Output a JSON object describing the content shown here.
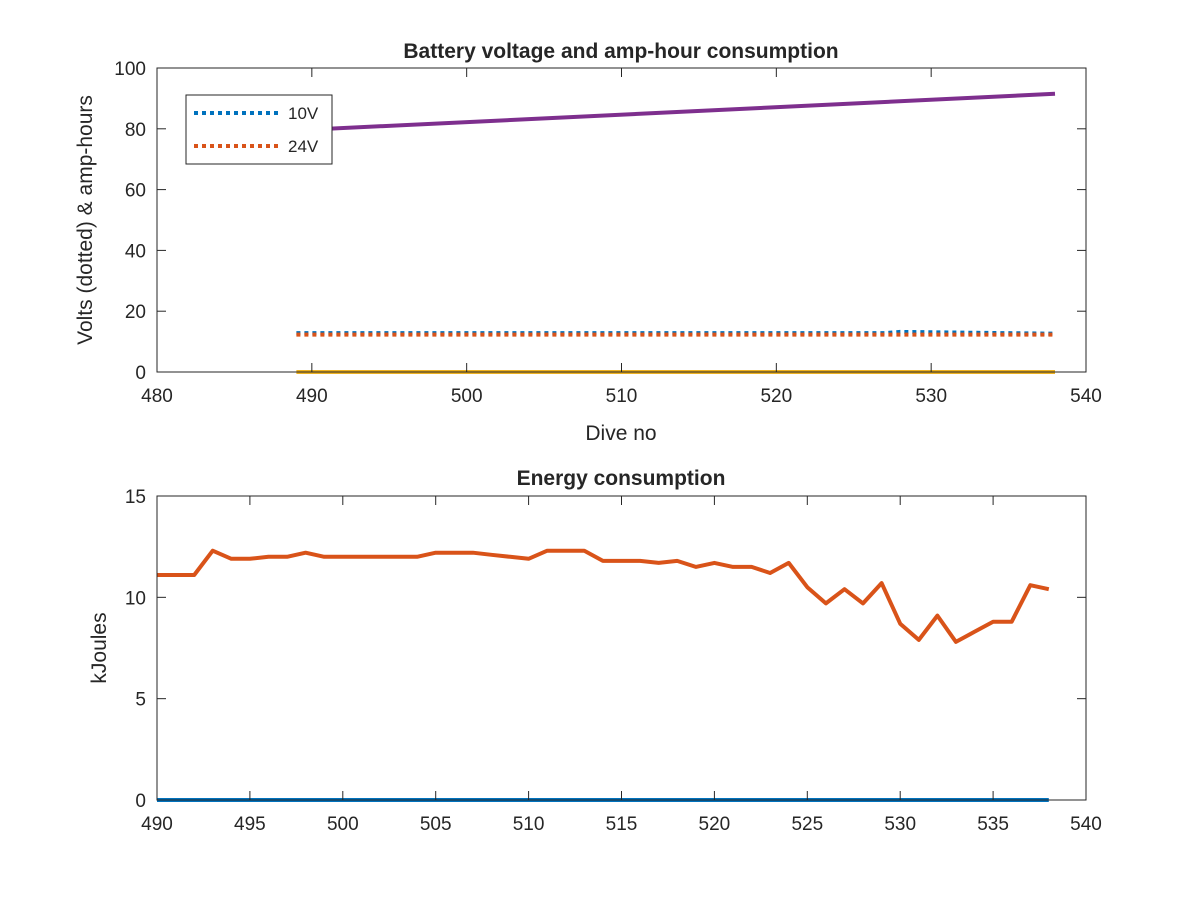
{
  "chart_data": [
    {
      "type": "line",
      "title": "Battery voltage and amp-hour consumption",
      "xlabel": "Dive no",
      "ylabel": "Volts (dotted) & amp-hours",
      "xlim": [
        480,
        540
      ],
      "ylim": [
        0,
        100
      ],
      "xticks": [
        "480",
        "490",
        "500",
        "510",
        "520",
        "530",
        "540"
      ],
      "yticks": [
        "0",
        "20",
        "40",
        "60",
        "80",
        "100"
      ],
      "grid": false,
      "legend_position": "top-left",
      "legend": [
        "10V",
        "24V"
      ],
      "series": [
        {
          "name": "10V",
          "style": "dotted",
          "color": "#0072BD",
          "x": [
            489,
            527,
            528,
            538
          ],
          "y": [
            12.8,
            12.8,
            13.2,
            12.6
          ]
        },
        {
          "name": "24V",
          "style": "dotted",
          "color": "#D95319",
          "x": [
            489,
            538
          ],
          "y": [
            12.3,
            12.3
          ]
        },
        {
          "style": "solid",
          "color": "#7E2F8E",
          "x": [
            489,
            538
          ],
          "y": [
            79.5,
            91.5
          ]
        },
        {
          "style": "solid",
          "color": "#EDB120",
          "x": [
            489,
            538
          ],
          "y": [
            0,
            0
          ]
        }
      ]
    },
    {
      "type": "line",
      "title": "Energy consumption",
      "xlabel": "",
      "ylabel": "kJoules",
      "xlim": [
        490,
        540
      ],
      "ylim": [
        0,
        15
      ],
      "xticks": [
        "490",
        "495",
        "500",
        "505",
        "510",
        "515",
        "520",
        "525",
        "530",
        "535",
        "540"
      ],
      "yticks": [
        "0",
        "5",
        "10",
        "15"
      ],
      "grid": false,
      "series": [
        {
          "style": "solid",
          "color": "#D95319",
          "x": [
            490,
            491,
            492,
            493,
            494,
            495,
            496,
            497,
            498,
            499,
            500,
            501,
            502,
            503,
            504,
            505,
            506,
            507,
            508,
            509,
            510,
            511,
            512,
            513,
            514,
            515,
            516,
            517,
            518,
            519,
            520,
            521,
            522,
            523,
            524,
            525,
            526,
            527,
            528,
            529,
            530,
            531,
            532,
            533,
            534,
            535,
            536,
            537,
            538
          ],
          "y": [
            11.1,
            11.1,
            11.1,
            12.3,
            11.9,
            11.9,
            12.0,
            12.0,
            12.2,
            12.0,
            12.0,
            12.0,
            12.0,
            12.0,
            12.0,
            12.2,
            12.2,
            12.2,
            12.1,
            12.0,
            11.9,
            12.3,
            12.3,
            12.3,
            11.8,
            11.8,
            11.8,
            11.7,
            11.8,
            11.5,
            11.7,
            11.5,
            11.5,
            11.2,
            11.7,
            10.5,
            9.7,
            10.4,
            9.7,
            10.7,
            8.7,
            7.9,
            9.1,
            7.8,
            8.3,
            8.8,
            8.8,
            10.6,
            10.4
          ]
        },
        {
          "style": "solid",
          "color": "#0072BD",
          "x": [
            490,
            538
          ],
          "y": [
            0,
            0
          ]
        }
      ]
    }
  ]
}
